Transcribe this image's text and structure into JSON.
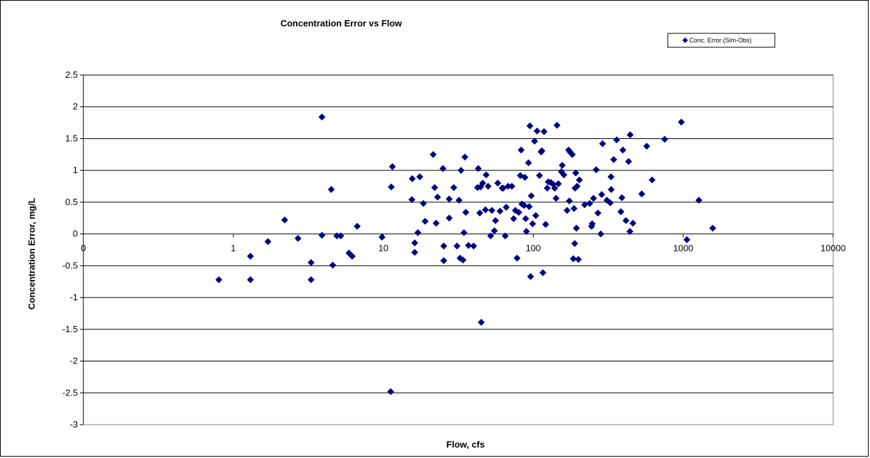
{
  "chart_data": {
    "type": "scatter",
    "title": "Concentration Error vs Flow",
    "xlabel": "Flow, cfs",
    "ylabel": "Concentration Error, mg/L",
    "x_scale": "log",
    "x_tick_labels": [
      "0",
      "1",
      "10",
      "100",
      "1000",
      "10000"
    ],
    "x_tick_values": [
      0.1,
      1,
      10,
      100,
      1000,
      10000
    ],
    "xlim": [
      0.1,
      10000
    ],
    "ylim": [
      -3,
      2.5
    ],
    "y_ticks": [
      2.5,
      2,
      1.5,
      1,
      0.5,
      0,
      -0.5,
      -1,
      -1.5,
      -2,
      -2.5,
      -3
    ],
    "y_tick_labels": [
      "2.5",
      "2",
      "1.5",
      "1",
      "0.5",
      "0",
      "-0.5",
      "-1",
      "-1.5",
      "-2",
      "-2.5",
      "-3"
    ],
    "grid": true,
    "legend_position": "top-right",
    "marker_color": "#000080",
    "series": [
      {
        "name": "Conc. Error (Sim-Obs)",
        "points": [
          [
            0.8,
            -0.72
          ],
          [
            1.3,
            -0.35
          ],
          [
            1.3,
            -0.72
          ],
          [
            1.7,
            -0.12
          ],
          [
            2.2,
            0.22
          ],
          [
            2.7,
            -0.07
          ],
          [
            3.3,
            -0.45
          ],
          [
            3.3,
            -0.72
          ],
          [
            3.9,
            1.84
          ],
          [
            3.9,
            -0.02
          ],
          [
            4.5,
            0.7
          ],
          [
            4.6,
            -0.49
          ],
          [
            4.9,
            -0.03
          ],
          [
            5.2,
            -0.03
          ],
          [
            5.9,
            -0.3
          ],
          [
            6.2,
            -0.35
          ],
          [
            6.7,
            0.12
          ],
          [
            9.8,
            -0.05
          ],
          [
            11.3,
            0.74
          ],
          [
            11.5,
            1.06
          ],
          [
            11.2,
            -2.48
          ],
          [
            15.5,
            0.54
          ],
          [
            15.6,
            0.87
          ],
          [
            16.2,
            -0.14
          ],
          [
            16.2,
            -0.29
          ],
          [
            17.0,
            0.02
          ],
          [
            17.5,
            0.9
          ],
          [
            18.5,
            0.48
          ],
          [
            19.0,
            0.2
          ],
          [
            21.5,
            1.25
          ],
          [
            22.0,
            0.73
          ],
          [
            22.5,
            0.17
          ],
          [
            23.0,
            0.58
          ],
          [
            25.0,
            1.03
          ],
          [
            25.3,
            -0.19
          ],
          [
            25.3,
            -0.42
          ],
          [
            27.5,
            0.55
          ],
          [
            27.5,
            0.25
          ],
          [
            29.5,
            0.73
          ],
          [
            31.0,
            -0.19
          ],
          [
            32.0,
            0.53
          ],
          [
            32.5,
            -0.38
          ],
          [
            33.0,
            1.0
          ],
          [
            34.0,
            -0.41
          ],
          [
            34.5,
            0.02
          ],
          [
            35.0,
            1.21
          ],
          [
            35.5,
            0.34
          ],
          [
            37.0,
            -0.18
          ],
          [
            40.0,
            -0.19
          ],
          [
            42.5,
            0.73
          ],
          [
            43.0,
            1.03
          ],
          [
            44.0,
            0.33
          ],
          [
            44.5,
            0.74
          ],
          [
            45.0,
            -1.39
          ],
          [
            46.0,
            0.8
          ],
          [
            48.0,
            0.38
          ],
          [
            48.5,
            0.93
          ],
          [
            50.0,
            0.75
          ],
          [
            52.0,
            -0.03
          ],
          [
            53.0,
            0.37
          ],
          [
            55.0,
            0.05
          ],
          [
            56.0,
            0.21
          ],
          [
            58.0,
            0.8
          ],
          [
            60.0,
            0.36
          ],
          [
            62.0,
            0.72
          ],
          [
            63.0,
            0.72
          ],
          [
            65.0,
            -0.03
          ],
          [
            66.0,
            0.42
          ],
          [
            68.0,
            0.75
          ],
          [
            72.0,
            0.75
          ],
          [
            74.0,
            0.24
          ],
          [
            76.0,
            0.37
          ],
          [
            78.0,
            -0.38
          ],
          [
            80.0,
            0.34
          ],
          [
            82.0,
            0.92
          ],
          [
            83.0,
            1.32
          ],
          [
            84.0,
            0.47
          ],
          [
            87.0,
            0.45
          ],
          [
            88.0,
            0.89
          ],
          [
            89.0,
            0.24
          ],
          [
            90.0,
            0.04
          ],
          [
            93.0,
            1.12
          ],
          [
            94.0,
            0.43
          ],
          [
            95.0,
            1.7
          ],
          [
            96.0,
            -0.67
          ],
          [
            97.0,
            0.6
          ],
          [
            99.0,
            0.16
          ],
          [
            102.0,
            1.46
          ],
          [
            104.0,
            0.29
          ],
          [
            106.0,
            1.62
          ],
          [
            110.0,
            0.92
          ],
          [
            113.0,
            1.29
          ],
          [
            114.0,
            1.31
          ],
          [
            116.0,
            -0.61
          ],
          [
            118.0,
            1.61
          ],
          [
            121.0,
            0.15
          ],
          [
            124.0,
            0.72
          ],
          [
            126.0,
            0.82
          ],
          [
            131.0,
            0.81
          ],
          [
            136.0,
            0.78
          ],
          [
            139.0,
            0.72
          ],
          [
            142.0,
            0.56
          ],
          [
            144.0,
            1.71
          ],
          [
            147.0,
            0.79
          ],
          [
            154.0,
            0.98
          ],
          [
            156.0,
            1.08
          ],
          [
            160.0,
            0.93
          ],
          [
            168.0,
            0.37
          ],
          [
            172.0,
            1.32
          ],
          [
            174.0,
            0.52
          ],
          [
            176.0,
            1.29
          ],
          [
            182.0,
            1.25
          ],
          [
            185.0,
            -0.39
          ],
          [
            187.0,
            0.4
          ],
          [
            189.0,
            -0.15
          ],
          [
            190.0,
            0.72
          ],
          [
            192.0,
            0.96
          ],
          [
            194.0,
            0.09
          ],
          [
            196.0,
            0.75
          ],
          [
            200.0,
            -0.4
          ],
          [
            203.0,
            0.85
          ],
          [
            220.0,
            0.46
          ],
          [
            238.0,
            0.48
          ],
          [
            245.0,
            0.12
          ],
          [
            247.0,
            0.16
          ],
          [
            252.0,
            0.56
          ],
          [
            263.0,
            1.01
          ],
          [
            270.0,
            0.33
          ],
          [
            282.0,
            0.0
          ],
          [
            286.0,
            0.62
          ],
          [
            290.0,
            1.42
          ],
          [
            310.0,
            0.53
          ],
          [
            326.0,
            0.49
          ],
          [
            330.0,
            0.9
          ],
          [
            331.0,
            0.7
          ],
          [
            344.0,
            1.17
          ],
          [
            360.0,
            1.48
          ],
          [
            384.0,
            0.35
          ],
          [
            390.0,
            0.57
          ],
          [
            396.0,
            1.32
          ],
          [
            415.0,
            0.21
          ],
          [
            432.0,
            1.14
          ],
          [
            441.0,
            0.04
          ],
          [
            443.0,
            1.56
          ],
          [
            462.0,
            0.17
          ],
          [
            529.0,
            0.63
          ],
          [
            571.0,
            1.38
          ],
          [
            620.0,
            0.85
          ],
          [
            752.0,
            1.49
          ],
          [
            971.0,
            1.76
          ],
          [
            1058.0,
            -0.09
          ],
          [
            1272.0,
            0.53
          ],
          [
            1573.0,
            0.09
          ]
        ]
      }
    ]
  }
}
